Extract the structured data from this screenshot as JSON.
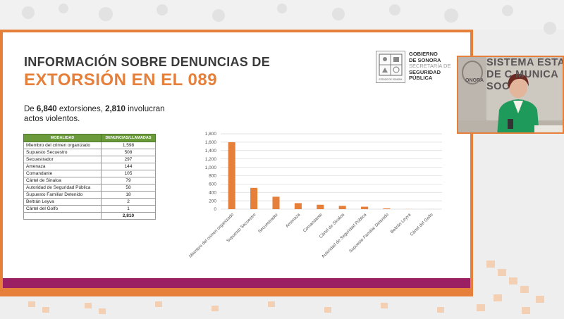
{
  "slide": {
    "title_line1": "INFORMACIÓN SOBRE DENUNCIAS DE",
    "title_line2": "EXTORSIÓN EN EL 089",
    "subtitle_pre": "De ",
    "subtitle_num1": "6,840",
    "subtitle_mid": " extorsiones, ",
    "subtitle_num2": "2,810",
    "subtitle_post": " involucran actos violentos."
  },
  "logo": {
    "line1": "GOBIERNO",
    "line2": "DE SONORA",
    "line3": "SECRETARÍA DE",
    "line4": "SEGURIDAD",
    "line5": "PÚBLICA",
    "emblem_caption": "ESTADO DE SONORA"
  },
  "table": {
    "headers": [
      "MODALIDAD",
      "DENUNCIAS/LLAMADAS"
    ],
    "rows": [
      [
        "Miembro del crimen organizado",
        "1,598"
      ],
      [
        "Supuesto Secuestro",
        "508"
      ],
      [
        "Secuestrador",
        "297"
      ],
      [
        "Amenaza",
        "144"
      ],
      [
        "Comandante",
        "105"
      ],
      [
        "Cártel de Sinaloa",
        "79"
      ],
      [
        "Autoridad de Seguridad Pública",
        "58"
      ],
      [
        "Supuesto Familiar Detenido",
        "18"
      ],
      [
        "Beltrán Leyva",
        "2"
      ],
      [
        "Cártel del Golfo",
        "1"
      ]
    ],
    "total": "2,810"
  },
  "video_overlay": {
    "line1": "SISTEMA ESTA",
    "line2": "DE C  MUNICA",
    "line3": "SOC",
    "left_text": "ONORA"
  },
  "chart_data": {
    "type": "bar",
    "title": "",
    "categories": [
      "Miembro del crimen organizado",
      "Supuesto Secuestro",
      "Secuestrador",
      "Amenaza",
      "Comandante",
      "Cártel de Sinaloa",
      "Autoridad de Seguridad Pública",
      "Supuesto Familiar Detenido",
      "Beltrán Leyva",
      "Cártel del Golfo"
    ],
    "values": [
      1598,
      508,
      297,
      144,
      105,
      79,
      58,
      18,
      2,
      1
    ],
    "ylim": [
      0,
      1800
    ],
    "yticks": [
      "0",
      "200",
      "400",
      "600",
      "800",
      "1,000",
      "1,200",
      "1,400",
      "1,600",
      "1,800"
    ],
    "ytick_values": [
      0,
      200,
      400,
      600,
      800,
      1000,
      1200,
      1400,
      1600,
      1800
    ],
    "grid": true,
    "bar_color": "#e57f3a",
    "xlabel": "",
    "ylabel": ""
  },
  "colors": {
    "accent_orange": "#e57f3a",
    "purple": "#9a1f63",
    "table_header_green": "#6a9a3a",
    "title_gray": "#3a3a3a"
  }
}
